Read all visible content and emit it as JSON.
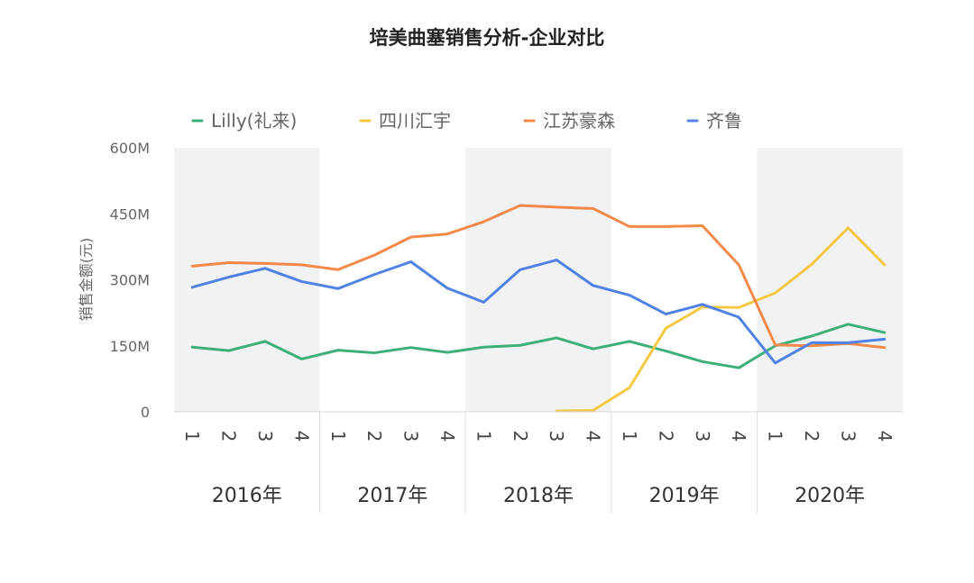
{
  "chart_data": {
    "type": "line",
    "title": "培美曲塞销售分析-企业对比",
    "ylabel": "销售金额(元)",
    "xlabel": "",
    "ylim": [
      0,
      600
    ],
    "yticks": [
      0,
      150,
      300,
      450,
      600
    ],
    "ytick_labels": [
      "0",
      "150M",
      "300M",
      "450M",
      "600M"
    ],
    "legend_position": "top",
    "grid": "alternating shaded year bands",
    "shade_color": "#f1f2f4",
    "categories": [
      "1",
      "2",
      "3",
      "4",
      "1",
      "2",
      "3",
      "4",
      "1",
      "2",
      "3",
      "4",
      "1",
      "2",
      "3",
      "4",
      "1",
      "2",
      "3",
      "4"
    ],
    "groups": [
      {
        "label": "2016年",
        "shaded": true
      },
      {
        "label": "2017年",
        "shaded": false
      },
      {
        "label": "2018年",
        "shaded": true
      },
      {
        "label": "2019年",
        "shaded": false
      },
      {
        "label": "2020年",
        "shaded": true
      }
    ],
    "series": [
      {
        "name": "Lilly(礼来)",
        "color": "#3daf78",
        "values": [
          147,
          139,
          160,
          120,
          140,
          134,
          146,
          135,
          147,
          151,
          168,
          143,
          160,
          138,
          114,
          100,
          150,
          172,
          199,
          180
        ]
      },
      {
        "name": "四川汇宇",
        "color": "#f5c842",
        "values": [
          null,
          null,
          null,
          null,
          null,
          null,
          null,
          null,
          null,
          null,
          2,
          3,
          55,
          190,
          238,
          237,
          270,
          335,
          418,
          334
        ]
      },
      {
        "name": "江苏豪森",
        "color": "#f5894a",
        "values": [
          331,
          339,
          337,
          334,
          323,
          356,
          397,
          404,
          432,
          469,
          465,
          462,
          421,
          421,
          423,
          334,
          152,
          150,
          155,
          146
        ]
      },
      {
        "name": "齐鲁",
        "color": "#5082e6",
        "values": [
          283,
          306,
          326,
          296,
          280,
          312,
          341,
          281,
          249,
          323,
          345,
          287,
          265,
          222,
          244,
          215,
          111,
          157,
          157,
          165
        ]
      }
    ]
  }
}
